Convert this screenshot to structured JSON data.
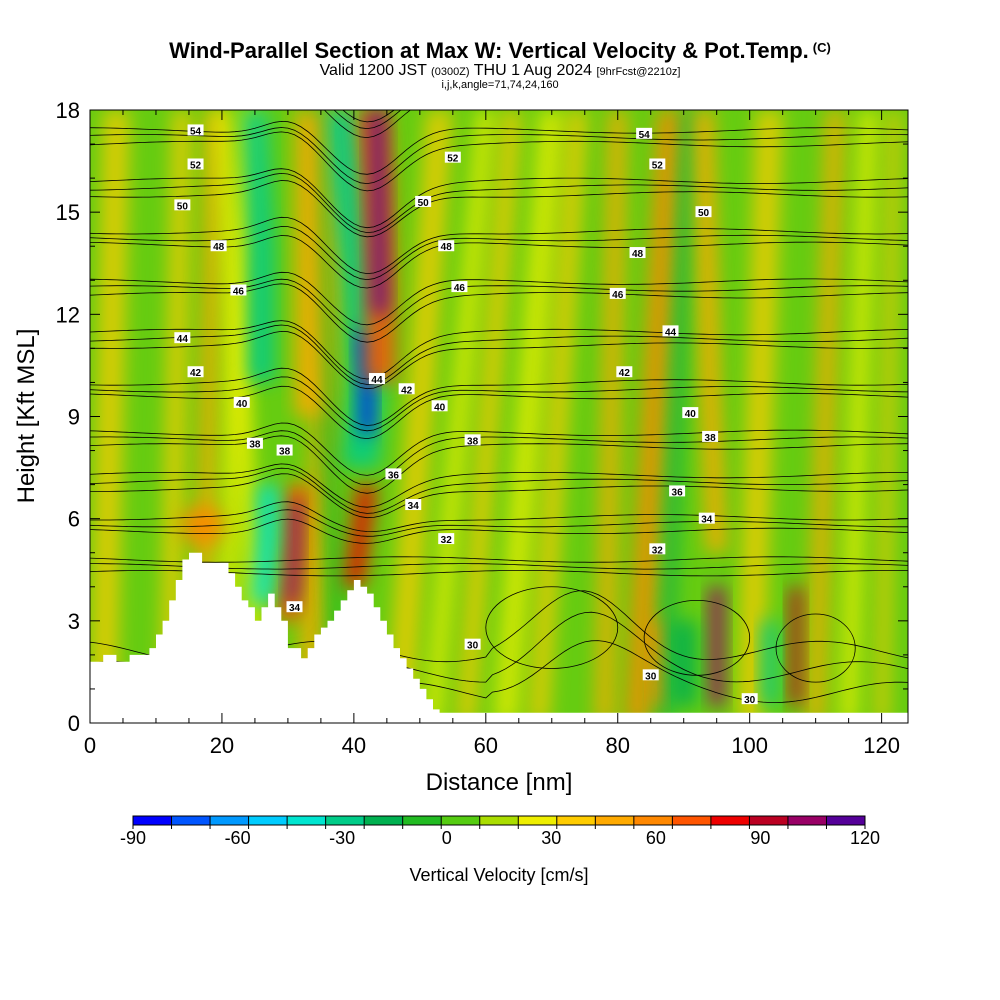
{
  "header": {
    "title": "Wind-Parallel Section at Max W: Vertical Velocity & Pot.Temp.",
    "copyright": "(C)",
    "valid_prefix": "Valid 1200 JST",
    "valid_utc": "(0300Z)",
    "valid_date": "THU 1 Aug 2024",
    "forecast_tag": "[9hrFcst@2210z]",
    "params": "i,j,k,angle=71,74,24,160"
  },
  "colors": {
    "palette": [
      "#0000ff",
      "#0055ff",
      "#0099ff",
      "#00ccff",
      "#00e5d0",
      "#00cc88",
      "#00b050",
      "#22bb22",
      "#55cc11",
      "#aadd00",
      "#eeee00",
      "#ffcc00",
      "#ffaa00",
      "#ff8800",
      "#ff5500",
      "#ee0000",
      "#bb0022",
      "#990066",
      "#550099"
    ],
    "terrain": "#ffffff"
  },
  "chart_data": {
    "type": "heatmap",
    "title": "Wind-Parallel Section at Max W: Vertical Velocity & Pot.Temp.",
    "xlabel": "Distance [nm]",
    "ylabel": "Height [Kft MSL]",
    "xlim": [
      0,
      124
    ],
    "ylim": [
      0,
      18
    ],
    "x_ticks": [
      "0",
      "20",
      "40",
      "60",
      "80",
      "100",
      "120"
    ],
    "y_ticks": [
      "0",
      "3",
      "6",
      "9",
      "12",
      "15",
      "18"
    ],
    "colorbar": {
      "title": "Vertical Velocity [cm/s]",
      "min": -90,
      "max": 120,
      "step": 10,
      "tick_labels": [
        "-90",
        "-60",
        "-30",
        "0",
        "30",
        "60",
        "90",
        "120"
      ]
    },
    "terrain_profile": [
      [
        0,
        1.8
      ],
      [
        2,
        1.8
      ],
      [
        2,
        2.0
      ],
      [
        4,
        2.0
      ],
      [
        4,
        1.8
      ],
      [
        6,
        1.8
      ],
      [
        6,
        2.0
      ],
      [
        9,
        2.0
      ],
      [
        9,
        2.2
      ],
      [
        10,
        2.2
      ],
      [
        10,
        2.6
      ],
      [
        11,
        2.6
      ],
      [
        11,
        3.0
      ],
      [
        12,
        3.0
      ],
      [
        12,
        3.6
      ],
      [
        13,
        3.6
      ],
      [
        13,
        4.2
      ],
      [
        14,
        4.2
      ],
      [
        14,
        4.8
      ],
      [
        15,
        4.8
      ],
      [
        15,
        5.0
      ],
      [
        17,
        5.0
      ],
      [
        17,
        4.7
      ],
      [
        21,
        4.7
      ],
      [
        21,
        4.4
      ],
      [
        22,
        4.4
      ],
      [
        22,
        4.0
      ],
      [
        23,
        4.0
      ],
      [
        23,
        3.6
      ],
      [
        24,
        3.6
      ],
      [
        24,
        3.4
      ],
      [
        25,
        3.4
      ],
      [
        25,
        3.0
      ],
      [
        26,
        3.0
      ],
      [
        26,
        3.4
      ],
      [
        27,
        3.4
      ],
      [
        27,
        3.8
      ],
      [
        28,
        3.8
      ],
      [
        28,
        3.4
      ],
      [
        29,
        3.4
      ],
      [
        29,
        3.0
      ],
      [
        30,
        3.0
      ],
      [
        30,
        2.2
      ],
      [
        32,
        2.2
      ],
      [
        32,
        1.9
      ],
      [
        33,
        1.9
      ],
      [
        33,
        2.2
      ],
      [
        34,
        2.2
      ],
      [
        34,
        2.6
      ],
      [
        35,
        2.6
      ],
      [
        35,
        2.8
      ],
      [
        36,
        2.8
      ],
      [
        36,
        3.0
      ],
      [
        37,
        3.0
      ],
      [
        37,
        3.3
      ],
      [
        38,
        3.3
      ],
      [
        38,
        3.6
      ],
      [
        39,
        3.6
      ],
      [
        39,
        3.9
      ],
      [
        40,
        3.9
      ],
      [
        40,
        4.2
      ],
      [
        41,
        4.2
      ],
      [
        41,
        4.0
      ],
      [
        42,
        4.0
      ],
      [
        42,
        3.8
      ],
      [
        43,
        3.8
      ],
      [
        43,
        3.4
      ],
      [
        44,
        3.4
      ],
      [
        44,
        3.0
      ],
      [
        45,
        3.0
      ],
      [
        45,
        2.6
      ],
      [
        46,
        2.6
      ],
      [
        46,
        2.2
      ],
      [
        47,
        2.2
      ],
      [
        47,
        1.9
      ],
      [
        48,
        1.9
      ],
      [
        48,
        1.6
      ],
      [
        49,
        1.6
      ],
      [
        49,
        1.3
      ],
      [
        50,
        1.3
      ],
      [
        50,
        1.0
      ],
      [
        51,
        1.0
      ],
      [
        51,
        0.7
      ],
      [
        52,
        0.7
      ],
      [
        52,
        0.4
      ],
      [
        53,
        0.4
      ],
      [
        53,
        0.3
      ],
      [
        124,
        0.3
      ],
      [
        124,
        0
      ]
    ],
    "updrafts_cm_s": [
      {
        "x": 31,
        "z": 4.8,
        "w": 110
      },
      {
        "x": 43,
        "z": 16.0,
        "w": 100
      },
      {
        "x": 41,
        "z": 5.5,
        "w": 75
      },
      {
        "x": 95,
        "z": 2.5,
        "w": 80
      },
      {
        "x": 107,
        "z": 2.5,
        "w": 70
      }
    ],
    "downdrafts_cm_s": [
      {
        "x": 42,
        "z": 10.0,
        "w": -90
      },
      {
        "x": 27,
        "z": 5.0,
        "w": -45
      },
      {
        "x": 26,
        "z": 16.0,
        "w": -40
      }
    ],
    "theta_contours": [
      30,
      32,
      34,
      36,
      38,
      40,
      42,
      44,
      46,
      48,
      50,
      52,
      54
    ],
    "contour_labels": [
      {
        "text": "54",
        "x": 16,
        "z": 17.4
      },
      {
        "text": "52",
        "x": 16,
        "z": 16.4
      },
      {
        "text": "50",
        "x": 14,
        "z": 15.2
      },
      {
        "text": "48",
        "x": 19.5,
        "z": 14.0
      },
      {
        "text": "46",
        "x": 22.5,
        "z": 12.7
      },
      {
        "text": "44",
        "x": 14,
        "z": 11.3
      },
      {
        "text": "42",
        "x": 16,
        "z": 10.3
      },
      {
        "text": "40",
        "x": 23,
        "z": 9.4
      },
      {
        "text": "38",
        "x": 25,
        "z": 8.2
      },
      {
        "text": "38",
        "x": 29.5,
        "z": 8.0
      },
      {
        "text": "34",
        "x": 31,
        "z": 3.4
      },
      {
        "text": "52",
        "x": 55,
        "z": 16.6
      },
      {
        "text": "50",
        "x": 50.5,
        "z": 15.3
      },
      {
        "text": "48",
        "x": 54,
        "z": 14.0
      },
      {
        "text": "46",
        "x": 56,
        "z": 12.8
      },
      {
        "text": "44",
        "x": 43.5,
        "z": 10.1
      },
      {
        "text": "42",
        "x": 48,
        "z": 9.8
      },
      {
        "text": "40",
        "x": 53,
        "z": 9.3
      },
      {
        "text": "38",
        "x": 58,
        "z": 8.3
      },
      {
        "text": "36",
        "x": 46,
        "z": 7.3
      },
      {
        "text": "34",
        "x": 49,
        "z": 6.4
      },
      {
        "text": "32",
        "x": 54,
        "z": 5.4
      },
      {
        "text": "30",
        "x": 58,
        "z": 2.3
      },
      {
        "text": "54",
        "x": 84,
        "z": 17.3
      },
      {
        "text": "52",
        "x": 86,
        "z": 16.4
      },
      {
        "text": "50",
        "x": 93,
        "z": 15.0
      },
      {
        "text": "48",
        "x": 83,
        "z": 13.8
      },
      {
        "text": "46",
        "x": 80,
        "z": 12.6
      },
      {
        "text": "44",
        "x": 88,
        "z": 11.5
      },
      {
        "text": "42",
        "x": 81,
        "z": 10.3
      },
      {
        "text": "40",
        "x": 91,
        "z": 9.1
      },
      {
        "text": "38",
        "x": 94,
        "z": 8.4
      },
      {
        "text": "36",
        "x": 89,
        "z": 6.8
      },
      {
        "text": "34",
        "x": 93.5,
        "z": 6.0
      },
      {
        "text": "32",
        "x": 86,
        "z": 5.1
      },
      {
        "text": "30",
        "x": 85,
        "z": 1.4
      },
      {
        "text": "30",
        "x": 100,
        "z": 0.7
      }
    ]
  }
}
